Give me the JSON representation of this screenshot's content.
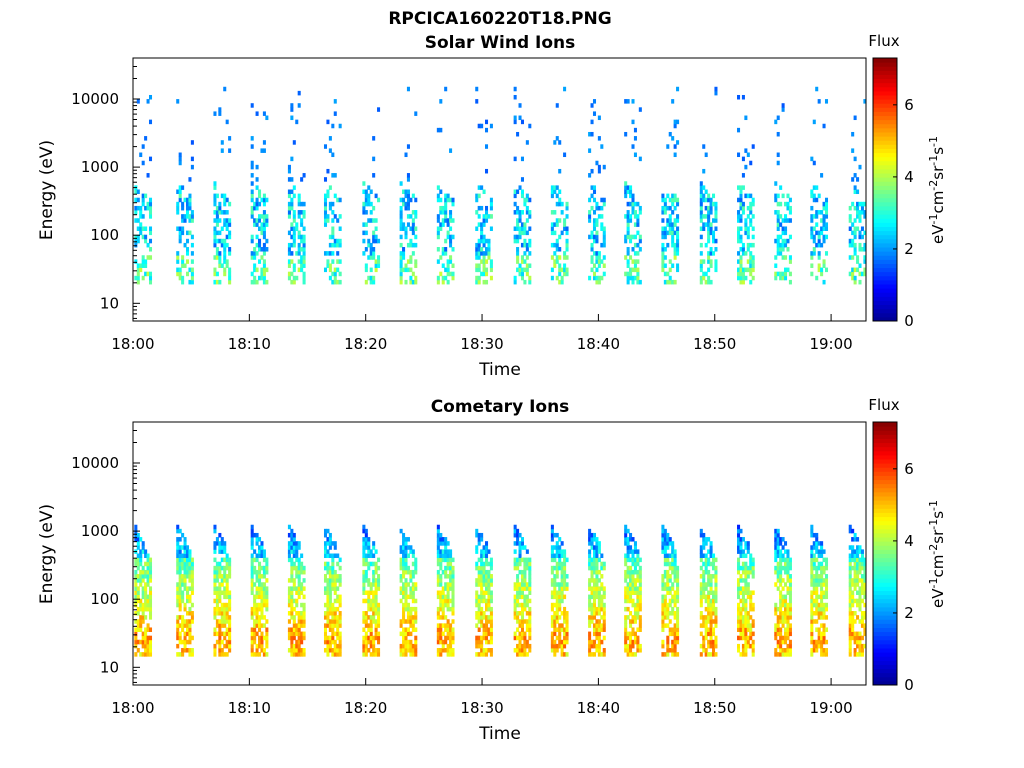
{
  "figure": {
    "file_title": "RPCICA160220T18.PNG"
  },
  "colormap": {
    "name": "jet",
    "stops": [
      "#00008f",
      "#0000ff",
      "#0080ff",
      "#00ffff",
      "#80ff80",
      "#ffff00",
      "#ff8000",
      "#ff0000",
      "#800000"
    ]
  },
  "chart_data": [
    {
      "type": "heatmap",
      "title": "Solar Wind Ions",
      "xlabel": "Time",
      "ylabel": "Energy (eV)",
      "xtick_labels": [
        "18:00",
        "18:10",
        "18:20",
        "18:30",
        "18:40",
        "18:50",
        "19:00"
      ],
      "x_range_minutes": [
        0,
        63
      ],
      "y_scale": "log",
      "ylim": [
        5.5,
        40000
      ],
      "ytick_values": [
        10,
        100,
        1000,
        10000
      ],
      "ytick_labels": [
        "10",
        "100",
        "1000",
        "10000"
      ],
      "colorbar": {
        "label_top": "Flux",
        "unit_html": "eV<tspan baseline-shift='super' font-size='11'>-1</tspan>cm<tspan baseline-shift='super' font-size='11'>-2</tspan>sr<tspan baseline-shift='super' font-size='11'>-1</tspan>s<tspan baseline-shift='super' font-size='11'>-1</tspan>",
        "range": [
          0,
          7.3
        ],
        "ticks": [
          0,
          2,
          4,
          6
        ],
        "tick_labels": [
          "0",
          "2",
          "4",
          "6"
        ]
      },
      "sweep_times_minutes": [
        0.2,
        3.8,
        7.0,
        10.2,
        13.4,
        16.5,
        19.8,
        23.0,
        26.2,
        29.5,
        32.8,
        36.0,
        39.2,
        42.3,
        45.5,
        48.8,
        52.0,
        55.2,
        58.3,
        61.6
      ],
      "sweep_profile": {
        "core_energy_range_eV": [
          20,
          600
        ],
        "core_peak_level": 3.4,
        "sparse_energy_range_eV": [
          600,
          15000
        ],
        "sparse_level": 1.5
      }
    },
    {
      "type": "heatmap",
      "title": "Cometary Ions",
      "xlabel": "Time",
      "ylabel": "Energy (eV)",
      "xtick_labels": [
        "18:00",
        "18:10",
        "18:20",
        "18:30",
        "18:40",
        "18:50",
        "19:00"
      ],
      "x_range_minutes": [
        0,
        63
      ],
      "y_scale": "log",
      "ylim": [
        5.5,
        40000
      ],
      "ytick_values": [
        10,
        100,
        1000,
        10000
      ],
      "ytick_labels": [
        "10",
        "100",
        "1000",
        "10000"
      ],
      "colorbar": {
        "label_top": "Flux",
        "unit_html": "eV<tspan baseline-shift='super' font-size='11'>-1</tspan>cm<tspan baseline-shift='super' font-size='11'>-2</tspan>sr<tspan baseline-shift='super' font-size='11'>-1</tspan>s<tspan baseline-shift='super' font-size='11'>-1</tspan>",
        "range": [
          0,
          7.3
        ],
        "ticks": [
          0,
          2,
          4,
          6
        ],
        "tick_labels": [
          "0",
          "2",
          "4",
          "6"
        ]
      },
      "sweep_times_minutes": [
        0.2,
        3.8,
        7.0,
        10.2,
        13.4,
        16.5,
        19.8,
        23.0,
        26.2,
        29.5,
        32.8,
        36.0,
        39.2,
        42.3,
        45.5,
        48.8,
        52.0,
        55.2,
        58.3,
        61.6
      ],
      "sweep_profile": {
        "core_energy_range_eV": [
          15,
          1200
        ],
        "core_peak_level": 5.2,
        "peak_energy_eV": 25,
        "sparse_level": 1.2
      }
    }
  ]
}
